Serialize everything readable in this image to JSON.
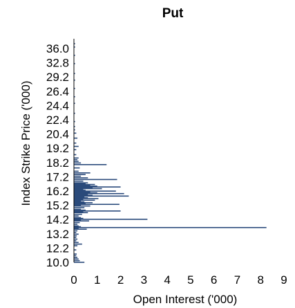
{
  "chart_data": {
    "type": "bar",
    "orientation": "horizontal",
    "title": "Put",
    "xlabel": "Open Interest ('000)",
    "ylabel": "Index Strike Price ('000)",
    "xlim": [
      0,
      9
    ],
    "ylim": [
      10.0,
      37.0
    ],
    "x_ticks": [
      0,
      1,
      2,
      3,
      4,
      5,
      6,
      7,
      8,
      9
    ],
    "y_ticks": [
      "10.0",
      "12.2",
      "13.2",
      "14.2",
      "15.2",
      "16.2",
      "17.2",
      "18.2",
      "19.2",
      "20.4",
      "22.4",
      "24.4",
      "26.4",
      "29.2",
      "32.8",
      "36.0"
    ],
    "grid": false,
    "bar_color": "#2a4a7b",
    "categories": [
      "10.0",
      "10.2",
      "10.4",
      "10.6",
      "10.8",
      "11.0",
      "11.5",
      "12.0",
      "12.2",
      "12.4",
      "12.6",
      "12.8",
      "13.0",
      "13.2",
      "13.4",
      "13.6",
      "13.8",
      "14.0",
      "14.1",
      "14.2",
      "14.3",
      "14.4",
      "14.6",
      "14.8",
      "15.0",
      "15.1",
      "15.2",
      "15.3",
      "15.4",
      "15.6",
      "15.8",
      "16.0",
      "16.1",
      "16.2",
      "16.3",
      "16.4",
      "16.6",
      "16.8",
      "16.9",
      "17.0",
      "17.1",
      "17.2",
      "17.3",
      "17.4",
      "17.5",
      "17.6",
      "17.7",
      "17.8",
      "17.9",
      "18.0",
      "18.1",
      "18.2",
      "18.3",
      "18.4",
      "18.5",
      "18.6",
      "18.7",
      "18.8",
      "18.9",
      "19.0",
      "19.1",
      "19.2",
      "19.3",
      "19.4",
      "19.5",
      "19.6",
      "19.8",
      "20.0",
      "20.2",
      "20.4",
      "20.6",
      "20.8",
      "21.0",
      "21.4",
      "21.8",
      "22.0",
      "22.2",
      "22.4",
      "22.6",
      "23.0",
      "23.6",
      "24.0",
      "24.4",
      "25.0",
      "25.6",
      "26.0",
      "26.4",
      "27.0",
      "28.0",
      "29.2",
      "30.0",
      "31.0",
      "32.0",
      "32.8",
      "34.0",
      "35.0",
      "36.0",
      "36.4"
    ],
    "values": [
      0.45,
      0.25,
      0.2,
      0.15,
      0.1,
      0.12,
      0.1,
      0.15,
      0.35,
      0.2,
      0.1,
      0.15,
      0.1,
      0.12,
      0.2,
      0.1,
      0.15,
      0.55,
      0.2,
      8.25,
      0.3,
      0.2,
      0.15,
      0.25,
      0.65,
      0.3,
      3.15,
      0.4,
      0.3,
      0.2,
      0.35,
      0.6,
      0.4,
      2.0,
      0.5,
      0.3,
      0.45,
      0.7,
      0.3,
      1.95,
      0.5,
      0.8,
      0.45,
      0.3,
      0.9,
      0.4,
      1.05,
      0.6,
      0.45,
      2.35,
      0.8,
      0.6,
      2.15,
      1.0,
      0.7,
      1.8,
      0.5,
      0.4,
      1.2,
      0.8,
      2.0,
      1.0,
      0.7,
      0.9,
      0.5,
      0.6,
      0.4,
      1.85,
      0.6,
      0.3,
      0.5,
      0.7,
      0.2,
      0.25,
      1.4,
      0.3,
      0.2,
      0.15,
      0.2,
      0.1,
      0.1,
      0.2,
      0.1,
      0.15,
      0.1,
      0.05,
      0.05,
      0.05,
      0.05,
      0.05,
      0.05,
      0.05,
      0.05,
      0.05,
      0.05,
      0.05,
      0.05,
      0.05
    ]
  }
}
